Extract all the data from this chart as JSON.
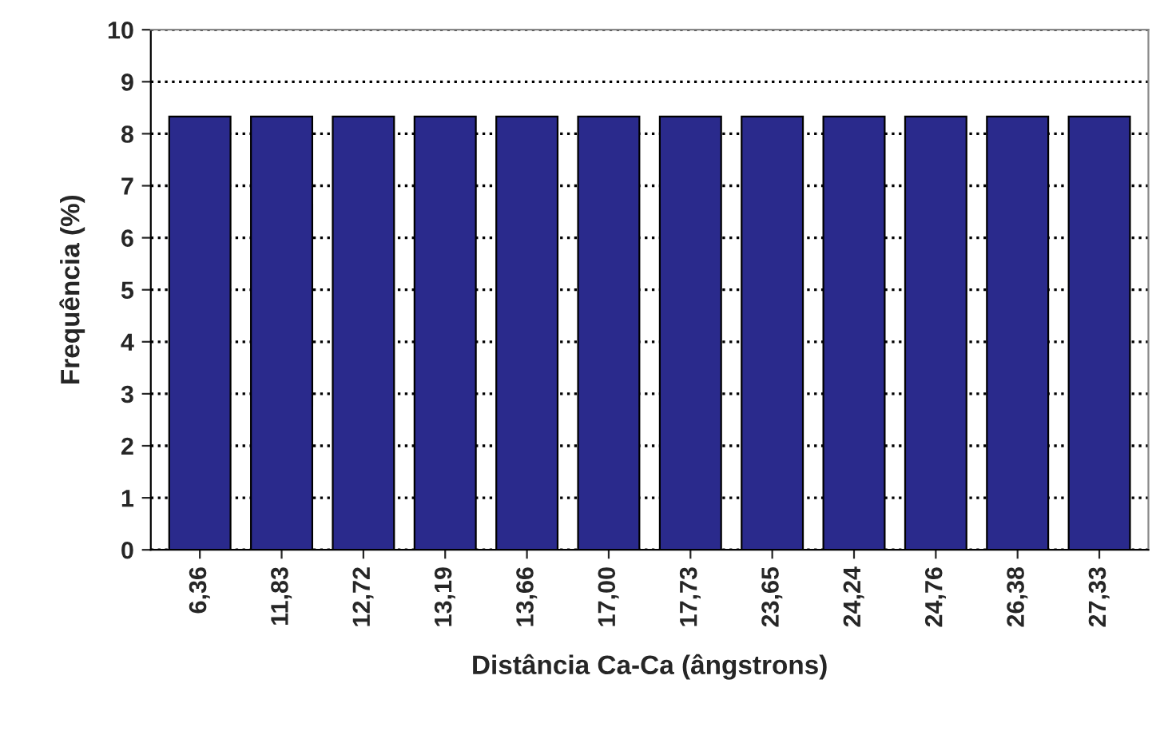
{
  "chart_data": {
    "type": "bar",
    "xlabel": "Distância Ca-Ca (ângstrons)",
    "ylabel": "Frequência (%)",
    "categories": [
      "6,36",
      "11,83",
      "12,72",
      "13,19",
      "13,66",
      "17,00",
      "17,73",
      "23,65",
      "24,24",
      "24,76",
      "26,38",
      "27,33"
    ],
    "values": [
      8.33,
      8.33,
      8.33,
      8.33,
      8.33,
      8.33,
      8.33,
      8.33,
      8.33,
      8.33,
      8.33,
      8.33
    ],
    "color": "#2a2a8c",
    "ylim": [
      0,
      10
    ],
    "yticks": [
      0,
      1,
      2,
      3,
      4,
      5,
      6,
      7,
      8,
      9,
      10
    ],
    "grid": "y"
  }
}
